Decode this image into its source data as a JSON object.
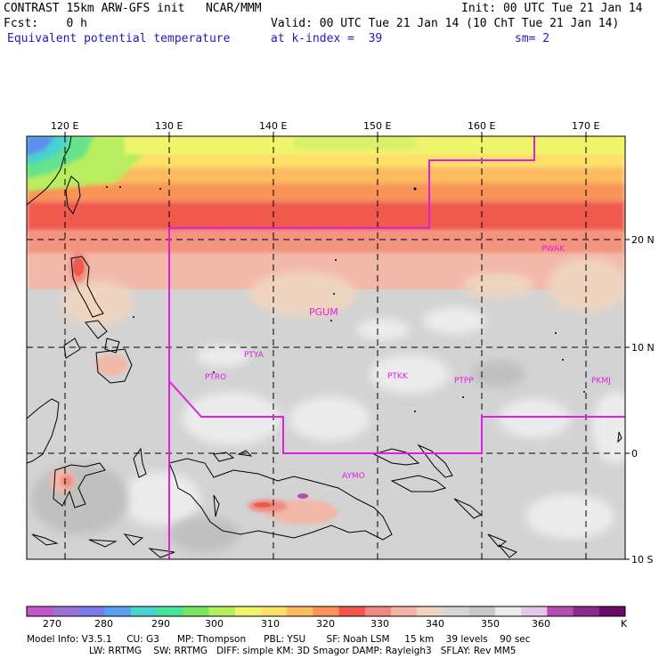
{
  "header": {
    "line1_left": "CONTRAST 15km ARW-GFS init   NCAR/MMM",
    "line1_right": "Init: 00 UTC Tue 21 Jan 14",
    "fcst": "Fcst:    0 h",
    "valid": "Valid: 00 UTC Tue 21 Jan 14 (10 ChT Tue 21 Jan 14)",
    "field": "Equivalent potential temperature",
    "level": "at k-index =  39",
    "smooth": "sm= 2"
  },
  "map": {
    "lon_labels": [
      "120 E",
      "130 E",
      "140 E",
      "150 E",
      "160 E",
      "170 E"
    ],
    "lat_labels": [
      "20 N",
      "10 N",
      "0",
      "10 S"
    ],
    "stations": [
      "PWAK",
      "PGUM",
      "PTYA",
      "PTRO",
      "PTKK",
      "PTPP",
      "PKMJ",
      "AYMO"
    ],
    "boundary_color": "#e020e0"
  },
  "colorbar": {
    "ticks": [
      "270",
      "280",
      "290",
      "300",
      "310",
      "320",
      "330",
      "340",
      "350",
      "360"
    ],
    "unit": "K",
    "colors": [
      "#c455c9",
      "#9d6fd8",
      "#7b7bea",
      "#5a9ff0",
      "#49d3cf",
      "#44e69a",
      "#7be55f",
      "#b4ee5d",
      "#eef56a",
      "#fde06a",
      "#fcbb5e",
      "#f89457",
      "#f2554d",
      "#f08a7f",
      "#f4b5a4",
      "#efd5c0",
      "#d6d6d6",
      "#c8c8c8",
      "#ebebeb",
      "#e6c7ea",
      "#b04fb0",
      "#8b2a8b",
      "#6a0a6a"
    ]
  },
  "model_info": {
    "line1": "Model Info: V3.5.1     CU: G3      MP: Thompson      PBL: YSU       SF: Noah LSM     15 km    39 levels    90 sec",
    "line2": "LW: RRTMG    SW: RRTMG   DIFF: simple KM: 3D Smagor DAMP: Rayleigh3   SFLAY: Rev MM5"
  }
}
